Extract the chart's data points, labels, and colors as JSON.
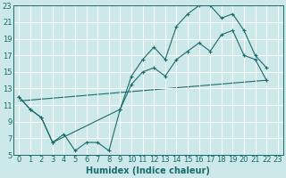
{
  "xlabel": "Humidex (Indice chaleur)",
  "bg_color": "#cde8e8",
  "grid_color": "#ffffff",
  "line_color": "#1a6b6b",
  "xlim": [
    -0.5,
    23.5
  ],
  "ylim": [
    5,
    23
  ],
  "xticks": [
    0,
    1,
    2,
    3,
    4,
    5,
    6,
    7,
    8,
    9,
    10,
    11,
    12,
    13,
    14,
    15,
    16,
    17,
    18,
    19,
    20,
    21,
    22,
    23
  ],
  "yticks": [
    5,
    7,
    9,
    11,
    13,
    15,
    17,
    19,
    21,
    23
  ],
  "curve1_x": [
    0,
    1,
    2,
    3,
    4,
    5,
    6,
    7,
    8,
    9,
    10,
    11,
    12,
    13,
    14,
    15,
    16,
    17,
    18,
    19,
    20,
    21,
    22
  ],
  "curve1_y": [
    12,
    10.5,
    9.5,
    6.5,
    7.5,
    5.5,
    6.5,
    6.5,
    5.5,
    10.5,
    14.5,
    16.5,
    18,
    16.5,
    20.5,
    22,
    23,
    23,
    21.5,
    22,
    20,
    17,
    15.5
  ],
  "curve2_x": [
    0,
    1,
    2,
    3,
    9,
    10,
    11,
    12,
    13,
    14,
    15,
    16,
    17,
    18,
    19,
    20,
    21,
    22
  ],
  "curve2_y": [
    12,
    10.5,
    9.5,
    6.5,
    10.5,
    13.5,
    15,
    15.5,
    14.5,
    16.5,
    17.5,
    18.5,
    17.5,
    19.5,
    20,
    17,
    16.5,
    14
  ],
  "line3_x": [
    0,
    22
  ],
  "line3_y": [
    11.5,
    14
  ],
  "marker_size": 2.5,
  "font_size_label": 7,
  "font_size_tick": 6
}
